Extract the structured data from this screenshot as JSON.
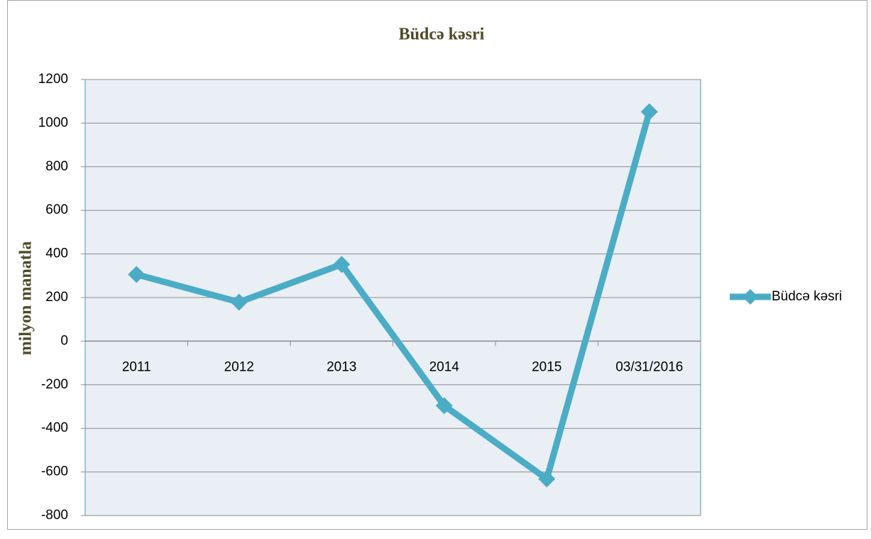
{
  "chart_data": {
    "type": "line",
    "title": "Büdcə kəsri",
    "y_label": "milyon manatla",
    "categories": [
      "2011",
      "2012",
      "2013",
      "2014",
      "2015",
      "03/31/2016"
    ],
    "series": [
      {
        "name": "Büdcə kəsri",
        "color": "#4bacc6",
        "values": [
          306,
          179,
          352,
          -296,
          -632,
          1052
        ]
      }
    ],
    "ylim": [
      -800,
      1200
    ],
    "yticks": [
      -800,
      -600,
      -400,
      -200,
      0,
      200,
      400,
      600,
      800,
      1000,
      1200
    ],
    "grid": true,
    "legend": "right"
  }
}
